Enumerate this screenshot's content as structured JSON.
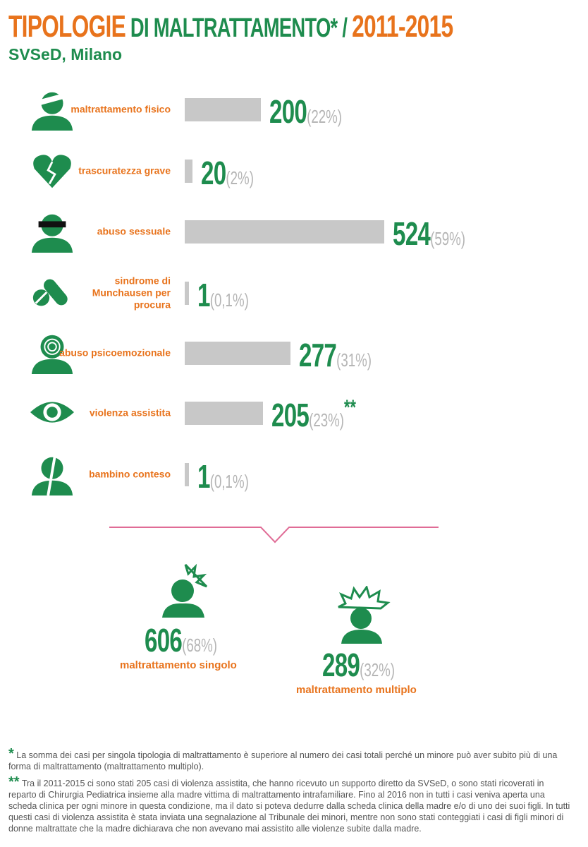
{
  "header": {
    "title_part1": "TIPOLOGIE",
    "title_part2": "DI MALTRATTAMENTO*",
    "title_sep": "/",
    "title_years": "2011-2015",
    "subtitle": "SVSeD, Milano"
  },
  "colors": {
    "orange": "#e8731c",
    "green": "#1e8c4e",
    "bar": "#c8c8c8",
    "divider": "#e06c96"
  },
  "chart_data": {
    "type": "bar",
    "orientation": "horizontal",
    "categories": [
      "maltrattamento fisico",
      "trascuratezza grave",
      "abuso sessuale",
      "sindrome di Munchausen per procura",
      "abuso psicoemozionale",
      "violenza assistita",
      "bambino conteso"
    ],
    "values": [
      200,
      20,
      524,
      1,
      277,
      205,
      1
    ],
    "percent_labels": [
      "(22%)",
      "(2%)",
      "(59%)",
      "(0,1%)",
      "(31%)",
      "(23%)",
      "(0,1%)"
    ],
    "icons": [
      "bandaged-head-icon",
      "broken-heart-icon",
      "censored-person-icon",
      "pill-capsule-icon",
      "spiral-head-icon",
      "eye-icon",
      "split-person-icon"
    ],
    "annotations": [
      "",
      "",
      "",
      "",
      "",
      "**",
      ""
    ]
  },
  "summary": {
    "single": {
      "value": "606",
      "percent": "(68%)",
      "label": "maltrattamento singolo"
    },
    "multiple": {
      "value": "289",
      "percent": "(32%)",
      "label": "maltrattamento multiplo"
    }
  },
  "notes": [
    {
      "marker": "*",
      "text": "La somma dei casi per singola tipologia di maltrattamento è superiore al numero dei casi totali perché un minore può aver subito più di una forma di maltrattamento (maltrattamento multiplo)."
    },
    {
      "marker": "**",
      "text": "Tra il 2011-2015 ci sono stati 205 casi di violenza assistita, che hanno ricevuto un supporto diretto da SVSeD, o sono stati ricoverati in reparto di Chirurgia Pediatrica insieme alla madre vittima di maltrattamento intrafamiliare. Fino al 2016 non in tutti i casi veniva aperta una scheda clinica per ogni minore in questa condizione, ma il dato si poteva dedurre dalla scheda clinica della madre e/o di uno dei suoi figli. In tutti questi casi di violenza assistita è stata inviata una segnalazione al Tribunale dei minori, mentre non sono stati conteggiati i casi di figli minori di donne maltrattate che la madre dichiarava che non avevano mai assistito alle violenze subite dalla madre."
    }
  ]
}
